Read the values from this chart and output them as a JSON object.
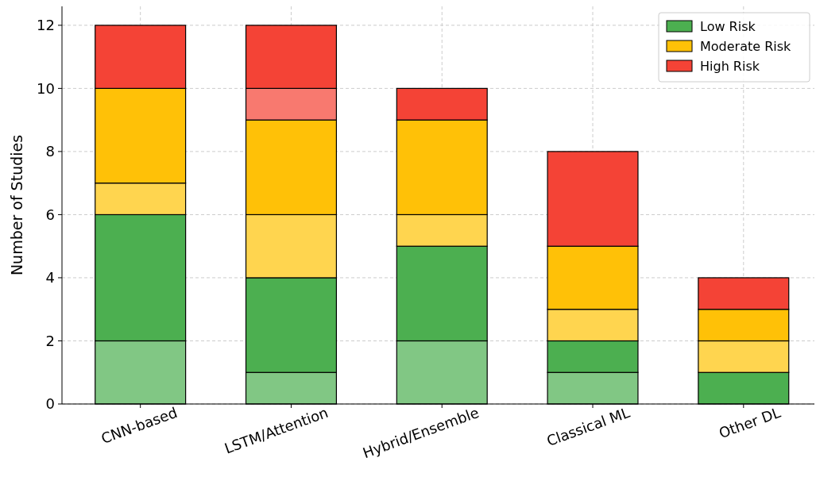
{
  "chart_data": {
    "type": "bar",
    "stacked": true,
    "ylabel": "Number of Studies",
    "categories": [
      "CNN-based",
      "LSTM/Attention",
      "Hybrid/Ensemble",
      "Classical ML",
      "Other DL"
    ],
    "series": [
      {
        "color": "#81c784",
        "values": [
          2,
          1,
          2,
          1,
          0
        ]
      },
      {
        "name": "Low Risk",
        "color": "#4caf50",
        "values": [
          4,
          3,
          3,
          1,
          1
        ]
      },
      {
        "color": "#ffd54f",
        "values": [
          1,
          2,
          1,
          1,
          1
        ]
      },
      {
        "name": "Moderate Risk",
        "color": "#ffc107",
        "values": [
          3,
          3,
          3,
          2,
          1
        ]
      },
      {
        "color": "#f8796f",
        "values": [
          0,
          1,
          0,
          0,
          0
        ]
      },
      {
        "name": "High Risk",
        "color": "#f44336",
        "values": [
          2,
          2,
          1,
          3,
          1
        ]
      }
    ],
    "ylim": [
      0,
      12.6
    ],
    "yticks": [
      0,
      2,
      4,
      6,
      8,
      10,
      12
    ],
    "grid": true,
    "legend": "top right"
  }
}
